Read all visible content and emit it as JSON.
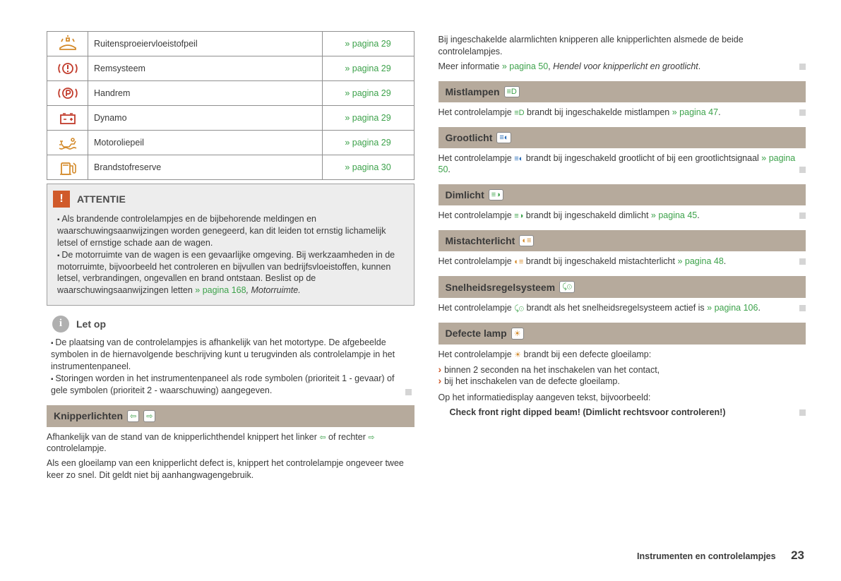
{
  "table": {
    "rows": [
      {
        "icon": "washer",
        "icon_color": "#d48a2a",
        "desc": "Ruitensproeiervloeistofpeil",
        "page": "» pagina 29"
      },
      {
        "icon": "brake",
        "icon_color": "#c13a2a",
        "desc": "Remsysteem",
        "page": "» pagina 29"
      },
      {
        "icon": "parking",
        "icon_color": "#c13a2a",
        "desc": "Handrem",
        "page": "» pagina 29"
      },
      {
        "icon": "battery",
        "icon_color": "#c13a2a",
        "desc": "Dynamo",
        "page": "» pagina 29"
      },
      {
        "icon": "oil",
        "icon_color": "#d48a2a",
        "desc": "Motoroliepeil",
        "page": "» pagina 29"
      },
      {
        "icon": "fuel",
        "icon_color": "#d48a2a",
        "desc": "Brandstofreserve",
        "page": "» pagina 30"
      }
    ]
  },
  "attention": {
    "title": "ATTENTIE",
    "items": [
      "Als brandende controlelampjes en de bijbehorende meldingen en waarschuwingsaanwijzingen worden genegeerd, kan dit leiden tot ernstig lichamelijk letsel of ernstige schade aan de wagen.",
      "De motorruimte van de wagen is een gevaarlijke omgeving. Bij werkzaamheden in de motorruimte, bijvoorbeeld het controleren en bijvullen van bedrijfsvloeistoffen, kunnen letsel, verbrandingen, ongevallen en brand ontstaan. Beslist op de waarschuwingsaanwijzingen letten "
    ],
    "tail_link": "» pagina 168",
    "tail_italic": ", Motorruimte.",
    "tail_end": ""
  },
  "note": {
    "title": "Let op",
    "items": [
      "De plaatsing van de controlelampjes is afhankelijk van het motortype. De afgebeelde symbolen in de hiernavolgende beschrijving kunt u terugvinden als controlelampje in het instrumentenpaneel.",
      "Storingen worden in het instrumentenpaneel als rode symbolen (prioriteit 1 - gevaar) of gele symbolen (prioriteit 2 - waarschuwing) aangegeven."
    ]
  },
  "knipper": {
    "title": "Knipperlichten",
    "p1_a": "Afhankelijk van de stand van de knipperlichthendel knippert het linker ",
    "p1_b": " of rechter ",
    "p1_c": " controlelampje.",
    "p2": "Als een gloeilamp van een knipperlicht defect is, knippert het controlelampje ongeveer twee keer zo snel. Dit geldt niet bij aanhangwagengebruik."
  },
  "right": {
    "intro1": "Bij ingeschakelde alarmlichten knipperen alle knipperlichten alsmede de beide controlelampjes.",
    "intro2a": "Meer informatie ",
    "intro2link": "» pagina 50",
    "intro2b": ", ",
    "intro2italic": "Hendel voor knipperlicht en grootlicht",
    "intro2c": "."
  },
  "mist": {
    "title": "Mistlampen",
    "p_a": "Het controlelampje ",
    "p_b": " brandt bij ingeschakelde mistlampen ",
    "link": "» pagina 47",
    "p_c": "."
  },
  "groot": {
    "title": "Grootlicht",
    "p_a": "Het controlelampje ",
    "p_b": " brandt bij ingeschakeld grootlicht of bij een grootlichtsignaal ",
    "link": "» pagina 50",
    "p_c": "."
  },
  "dim": {
    "title": "Dimlicht",
    "p_a": "Het controlelampje ",
    "p_b": " brandt bij ingeschakeld dimlicht ",
    "link": "» pagina 45",
    "p_c": "."
  },
  "mista": {
    "title": "Mistachterlicht",
    "p_a": "Het controlelampje ",
    "p_b": " brandt bij ingeschakeld mistachterlicht ",
    "link": "» pagina 48",
    "p_c": "."
  },
  "snel": {
    "title": "Snelheidsregelsysteem",
    "p_a": "Het controlelampje ",
    "p_b": " brandt als het snelheidsregelsysteem actief is ",
    "link": "» pagina 106",
    "p_c": "."
  },
  "defect": {
    "title": "Defecte lamp",
    "p1": "Het controlelampje ",
    "p1b": " brandt bij een defecte gloeilamp:",
    "b1": "binnen 2 seconden na het inschakelen van het contact,",
    "b2": "bij het inschakelen van de defecte gloeilamp.",
    "p2": "Op het informatiedisplay aangeven tekst, bijvoorbeeld:",
    "bold": "Check front right dipped beam! (Dimlicht rechtsvoor controleren!)"
  },
  "footer": {
    "title": "Instrumenten en controlelampjes",
    "page": "23"
  },
  "colors": {
    "link": "#3da24b",
    "bar": "#b6aa9c",
    "att": "#d05a2a",
    "note": "#b0b0b0"
  }
}
